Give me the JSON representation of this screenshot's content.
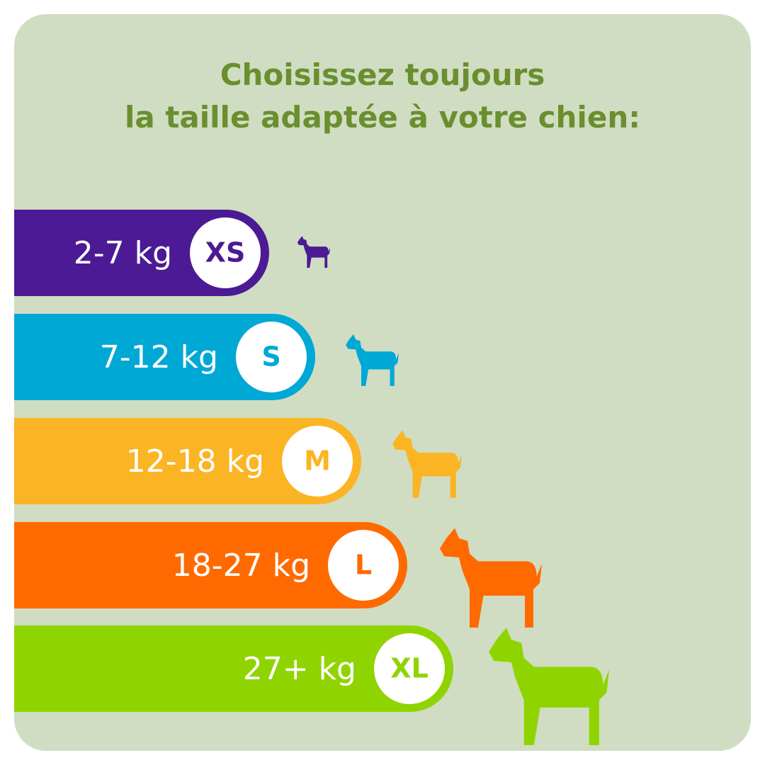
{
  "header": {
    "title_lines": [
      "Choisissez toujours",
      "la taille adaptée à votre chien:"
    ]
  },
  "rows": [
    {
      "weight": "2-7 kg",
      "size": "XS",
      "color": "#4b1a94"
    },
    {
      "weight": "7-12 kg",
      "size": "S",
      "color": "#00a8d6"
    },
    {
      "weight": "12-18 kg",
      "size": "M",
      "color": "#fbb424"
    },
    {
      "weight": "18-27 kg",
      "size": "L",
      "color": "#ff6a00"
    },
    {
      "weight": "27+ kg",
      "size": "XL",
      "color": "#8fd400"
    }
  ]
}
